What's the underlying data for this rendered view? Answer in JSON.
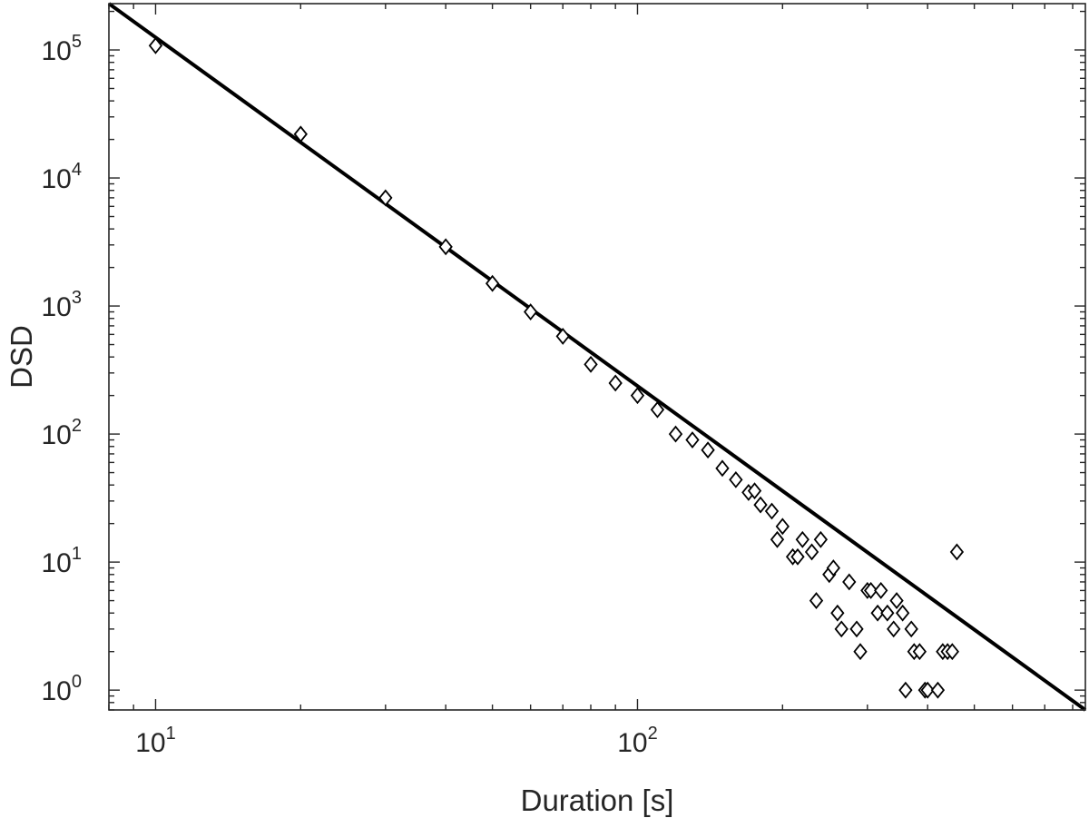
{
  "chart_data": {
    "type": "scatter",
    "title": "",
    "xlabel": "Duration [s]",
    "ylabel": "DSD",
    "xscale": "log",
    "yscale": "log",
    "xlim": [
      8,
      850
    ],
    "ylim": [
      0.7,
      230000
    ],
    "grid": false,
    "box": true,
    "x_ticks": [
      {
        "value": 10,
        "base": "10",
        "exp": "1"
      },
      {
        "value": 100,
        "base": "10",
        "exp": "2"
      }
    ],
    "y_ticks": [
      {
        "value": 1,
        "base": "10",
        "exp": "0"
      },
      {
        "value": 10,
        "base": "10",
        "exp": "1"
      },
      {
        "value": 100,
        "base": "10",
        "exp": "2"
      },
      {
        "value": 1000,
        "base": "10",
        "exp": "3"
      },
      {
        "value": 10000,
        "base": "10",
        "exp": "4"
      },
      {
        "value": 100000,
        "base": "10",
        "exp": "5"
      }
    ],
    "series": [
      {
        "type": "scatter",
        "marker": "diamond",
        "color": "#000000",
        "points": [
          [
            10,
            108000
          ],
          [
            20,
            22000
          ],
          [
            30,
            7000
          ],
          [
            40,
            2900
          ],
          [
            50,
            1500
          ],
          [
            60,
            900
          ],
          [
            70,
            580
          ],
          [
            80,
            350
          ],
          [
            90,
            250
          ],
          [
            100,
            200
          ],
          [
            110,
            155
          ],
          [
            120,
            100
          ],
          [
            130,
            90
          ],
          [
            140,
            75
          ],
          [
            150,
            54
          ],
          [
            160,
            44
          ],
          [
            170,
            35
          ],
          [
            175,
            36
          ],
          [
            180,
            28
          ],
          [
            190,
            25
          ],
          [
            195,
            15
          ],
          [
            200,
            19
          ],
          [
            210,
            11
          ],
          [
            215,
            11
          ],
          [
            220,
            15
          ],
          [
            230,
            12
          ],
          [
            235,
            5
          ],
          [
            240,
            15
          ],
          [
            250,
            8
          ],
          [
            255,
            9
          ],
          [
            260,
            4
          ],
          [
            265,
            3
          ],
          [
            275,
            7
          ],
          [
            285,
            3
          ],
          [
            290,
            2
          ],
          [
            300,
            6
          ],
          [
            305,
            6
          ],
          [
            315,
            4
          ],
          [
            320,
            6
          ],
          [
            330,
            4
          ],
          [
            340,
            3
          ],
          [
            345,
            5
          ],
          [
            355,
            4
          ],
          [
            360,
            1
          ],
          [
            370,
            3
          ],
          [
            375,
            2
          ],
          [
            385,
            2
          ],
          [
            395,
            1
          ],
          [
            400,
            1
          ],
          [
            420,
            1
          ],
          [
            430,
            2
          ],
          [
            440,
            2
          ],
          [
            450,
            2
          ],
          [
            460,
            12
          ]
        ]
      },
      {
        "type": "line",
        "color": "#000000",
        "points": [
          [
            8,
            230000
          ],
          [
            850,
            0.7
          ]
        ]
      }
    ]
  }
}
